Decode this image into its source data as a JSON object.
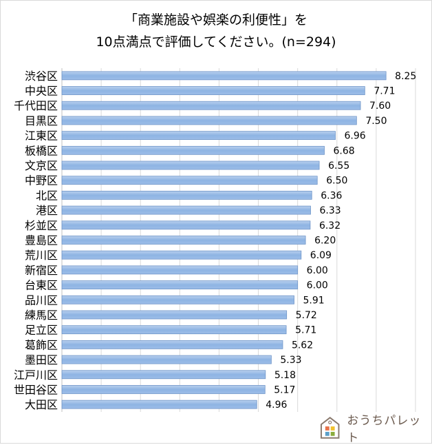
{
  "chart_data": {
    "type": "bar",
    "orientation": "horizontal",
    "title_line1": "「商業施設や娯楽の利便性」を",
    "title_line2": "10点満点で評価してください。(n=294)",
    "categories": [
      "渋谷区",
      "中央区",
      "千代田区",
      "目黒区",
      "江東区",
      "板橋区",
      "文京区",
      "中野区",
      "北区",
      "港区",
      "杉並区",
      "豊島区",
      "荒川区",
      "新宿区",
      "台東区",
      "品川区",
      "練馬区",
      "足立区",
      "葛飾区",
      "墨田区",
      "江戸川区",
      "世田谷区",
      "大田区"
    ],
    "values": [
      8.25,
      7.71,
      7.6,
      7.5,
      6.96,
      6.68,
      6.55,
      6.5,
      6.36,
      6.33,
      6.32,
      6.2,
      6.09,
      6.0,
      6.0,
      5.91,
      5.72,
      5.71,
      5.62,
      5.33,
      5.18,
      5.17,
      4.96
    ],
    "data_labels": [
      "8.25",
      "7.71",
      "7.60",
      "7.50",
      "6.96",
      "6.68",
      "6.55",
      "6.50",
      "6.36",
      "6.33",
      "6.32",
      "6.20",
      "6.09",
      "6.00",
      "6.00",
      "5.91",
      "5.72",
      "5.71",
      "5.62",
      "5.33",
      "5.18",
      "5.17",
      "4.96"
    ],
    "xlim": [
      0,
      9
    ],
    "grid": true,
    "bar_color": "#8eb4e3"
  },
  "brand": {
    "name": "おうちパレット"
  }
}
